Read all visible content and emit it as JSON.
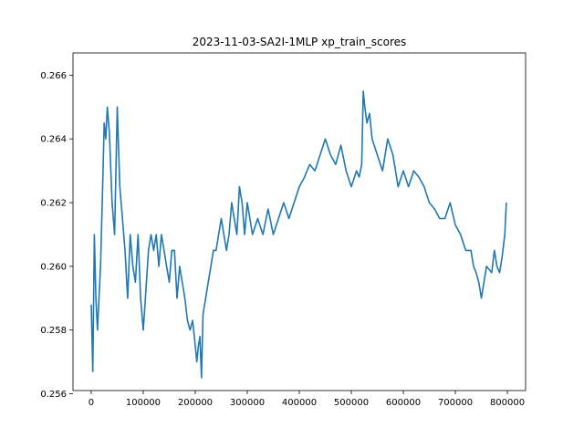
{
  "chart_data": {
    "type": "line",
    "title": "2023-11-03-SA2I-1MLP xp_train_scores",
    "xlabel": "",
    "ylabel": "",
    "xlim": [
      -35000,
      835000
    ],
    "ylim": [
      0.2561,
      0.2667
    ],
    "x_ticks": [
      0,
      100000,
      200000,
      300000,
      400000,
      500000,
      600000,
      700000,
      800000
    ],
    "x_tick_labels": [
      "0",
      "100000",
      "200000",
      "300000",
      "400000",
      "500000",
      "600000",
      "700000",
      "800000"
    ],
    "y_ticks": [
      0.256,
      0.258,
      0.26,
      0.262,
      0.264,
      0.266
    ],
    "y_tick_labels": [
      "0.256",
      "0.258",
      "0.260",
      "0.262",
      "0.264",
      "0.266"
    ],
    "grid": false,
    "line_color": "#1f77b4",
    "series": [
      {
        "x": [
          0,
          3000,
          6000,
          9000,
          12000,
          15000,
          18000,
          22000,
          25000,
          28000,
          31000,
          35000,
          40000,
          45000,
          50000,
          55000,
          60000,
          65000,
          70000,
          75000,
          80000,
          85000,
          90000,
          95000,
          100000,
          105000,
          110000,
          115000,
          120000,
          125000,
          130000,
          135000,
          140000,
          145000,
          150000,
          155000,
          160000,
          165000,
          170000,
          175000,
          180000,
          185000,
          190000,
          195000,
          200000,
          203000,
          206000,
          209000,
          212000,
          215000,
          220000,
          225000,
          230000,
          235000,
          240000,
          245000,
          250000,
          255000,
          260000,
          265000,
          270000,
          275000,
          280000,
          285000,
          290000,
          295000,
          300000,
          310000,
          320000,
          330000,
          340000,
          350000,
          360000,
          370000,
          380000,
          390000,
          400000,
          410000,
          420000,
          430000,
          440000,
          450000,
          460000,
          470000,
          480000,
          490000,
          500000,
          510000,
          515000,
          520000,
          523000,
          526000,
          530000,
          535000,
          540000,
          550000,
          560000,
          570000,
          580000,
          590000,
          600000,
          610000,
          620000,
          630000,
          640000,
          650000,
          660000,
          670000,
          680000,
          690000,
          700000,
          710000,
          720000,
          730000,
          735000,
          740000,
          745000,
          750000,
          760000,
          770000,
          775000,
          780000,
          785000,
          790000,
          795000,
          798000
        ],
        "y": [
          0.2588,
          0.2567,
          0.261,
          0.259,
          0.258,
          0.259,
          0.26,
          0.2625,
          0.2645,
          0.264,
          0.265,
          0.2642,
          0.262,
          0.261,
          0.265,
          0.2625,
          0.2615,
          0.2605,
          0.259,
          0.261,
          0.26,
          0.2595,
          0.261,
          0.259,
          0.258,
          0.2592,
          0.2605,
          0.261,
          0.2605,
          0.261,
          0.26,
          0.261,
          0.2605,
          0.26,
          0.2595,
          0.2605,
          0.2605,
          0.259,
          0.26,
          0.2595,
          0.259,
          0.2583,
          0.258,
          0.2583,
          0.2575,
          0.257,
          0.2575,
          0.2578,
          0.2565,
          0.2585,
          0.259,
          0.2595,
          0.26,
          0.2605,
          0.2605,
          0.261,
          0.2615,
          0.261,
          0.2605,
          0.261,
          0.262,
          0.2615,
          0.261,
          0.2625,
          0.262,
          0.261,
          0.262,
          0.261,
          0.2615,
          0.261,
          0.2618,
          0.261,
          0.2615,
          0.262,
          0.2615,
          0.262,
          0.2625,
          0.2628,
          0.2632,
          0.263,
          0.2635,
          0.264,
          0.2635,
          0.2632,
          0.2638,
          0.263,
          0.2625,
          0.263,
          0.2628,
          0.2632,
          0.2655,
          0.265,
          0.2645,
          0.2648,
          0.264,
          0.2635,
          0.263,
          0.264,
          0.2635,
          0.2625,
          0.263,
          0.2625,
          0.263,
          0.2628,
          0.2625,
          0.262,
          0.2618,
          0.2615,
          0.2615,
          0.262,
          0.2613,
          0.261,
          0.2605,
          0.2605,
          0.26,
          0.2598,
          0.2595,
          0.259,
          0.26,
          0.2598,
          0.2605,
          0.26,
          0.2598,
          0.2603,
          0.261,
          0.262
        ]
      }
    ]
  }
}
